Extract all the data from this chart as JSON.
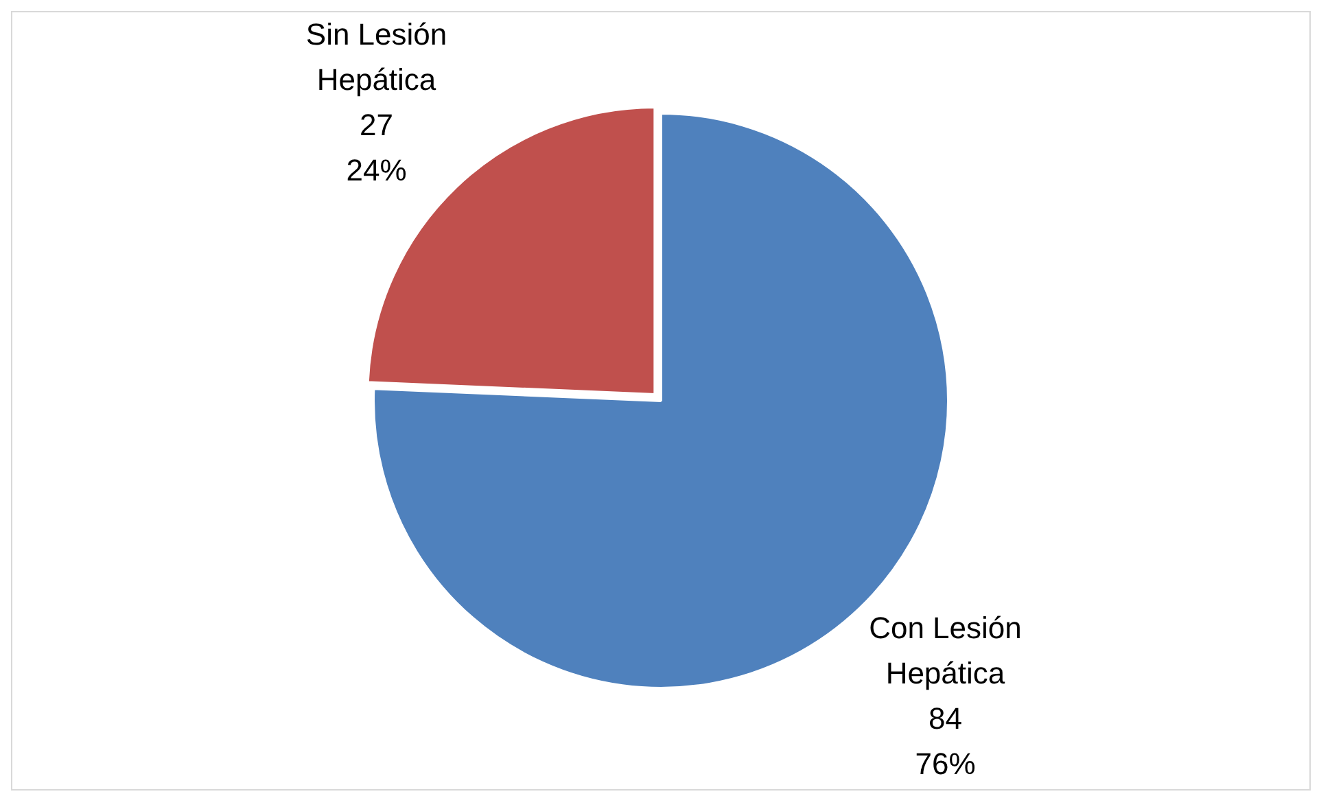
{
  "chart_data": {
    "type": "pie",
    "categories": [
      "Con Lesión Hepática",
      "Sin Lesión Hepática"
    ],
    "values": [
      84,
      27
    ],
    "colors": [
      "#4f81bd",
      "#c0504d"
    ],
    "value_labels": [
      "84\n76%",
      "27\n24%"
    ],
    "legend": false
  }
}
